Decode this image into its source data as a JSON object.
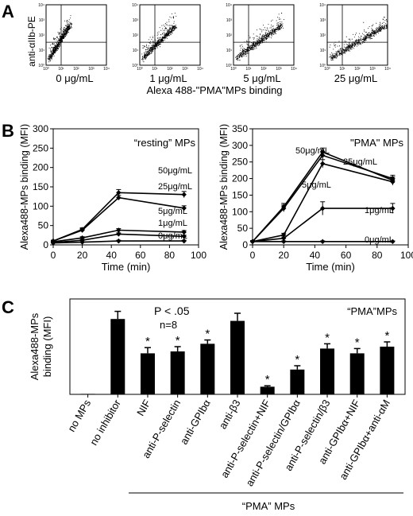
{
  "panels": {
    "A": {
      "letter": "A",
      "ylabel": "anti-αIIb-PE",
      "xlabel": "Alexa 488-\"PMA\"MPs binding",
      "tick_labels": [
        "10⁰",
        "10¹",
        "10²",
        "10³",
        "10⁴"
      ],
      "plots": [
        {
          "label": "0 μg/mL",
          "spread": 0.35
        },
        {
          "label": "1 μg/mL",
          "spread": 0.55
        },
        {
          "label": "5 μg/mL",
          "spread": 0.75
        },
        {
          "label": "25 μg/mL",
          "spread": 0.95
        }
      ]
    },
    "B": {
      "letter": "B"
    },
    "C": {
      "letter": "C"
    }
  },
  "chart_data": [
    {
      "type": "line",
      "title": "“resting” MPs",
      "xlabel": "Time (min)",
      "ylabel": "Alexa488-MPs binding (MFI)",
      "x": [
        0,
        20,
        45,
        90
      ],
      "xlim": [
        0,
        100
      ],
      "ylim": [
        0,
        300
      ],
      "xticks": [
        0,
        20,
        40,
        60,
        80,
        100
      ],
      "yticks": [
        0,
        50,
        100,
        150,
        200,
        250,
        300
      ],
      "series": [
        {
          "name": "50μg/mL",
          "values": [
            10,
            40,
            135,
            130
          ],
          "err": [
            2,
            4,
            8,
            8
          ]
        },
        {
          "name": "25μg/mL",
          "values": [
            10,
            38,
            122,
            95
          ],
          "err": [
            2,
            4,
            6,
            6
          ]
        },
        {
          "name": "5μg/mL",
          "values": [
            8,
            18,
            38,
            33
          ],
          "err": [
            2,
            3,
            4,
            4
          ]
        },
        {
          "name": "1μg/mL",
          "values": [
            6,
            12,
            28,
            22
          ],
          "err": [
            2,
            2,
            3,
            3
          ]
        },
        {
          "name": "0μg/mL",
          "values": [
            5,
            7,
            10,
            10
          ],
          "err": [
            1,
            1,
            2,
            2
          ]
        }
      ]
    },
    {
      "type": "line",
      "title": "\"PMA\" MPs",
      "xlabel": "Time (min)",
      "ylabel": "Alexa488-MPs binding (MFI)",
      "x": [
        0,
        20,
        45,
        90
      ],
      "xlim": [
        0,
        100
      ],
      "ylim": [
        0,
        350
      ],
      "xticks": [
        0,
        20,
        40,
        60,
        80,
        100
      ],
      "yticks": [
        0,
        50,
        100,
        150,
        200,
        250,
        300,
        350
      ],
      "series": [
        {
          "name": "50μg/mL",
          "values": [
            10,
            115,
            280,
            195
          ],
          "err": [
            3,
            10,
            12,
            10
          ]
        },
        {
          "name": "25μg/mL",
          "values": [
            10,
            110,
            270,
            200
          ],
          "err": [
            3,
            10,
            12,
            10
          ]
        },
        {
          "name": "5μg/mL",
          "values": [
            10,
            30,
            245,
            190
          ],
          "err": [
            3,
            5,
            12,
            10
          ]
        },
        {
          "name": "1μg/mL",
          "values": [
            10,
            20,
            110,
            110
          ],
          "err": [
            3,
            4,
            20,
            15
          ]
        },
        {
          "name": "0μg/mL",
          "values": [
            10,
            10,
            10,
            10
          ],
          "err": [
            2,
            2,
            2,
            2
          ]
        }
      ]
    },
    {
      "type": "bar",
      "title": "“PMA”MPs",
      "ylabel": "Alexa488-MPs binding (MFI)",
      "xlabel": "“PMA” MPs",
      "annotation_p": "P < .05",
      "annotation_n": "n=8",
      "ylim": [
        0,
        100
      ],
      "categories": [
        "no MPs",
        "no inhibitor",
        "NIF",
        "anti-P-selectin",
        "anti-GPIbα",
        "anti-β3",
        "anti-P-selectin+NIF",
        "anti-P-selectin/GPIbα",
        "anti-P-selectin/β3",
        "anti-GPIbα+NIF",
        "anti-GPIbα+anti-αM"
      ],
      "values": [
        0.5,
        79,
        43,
        45,
        53,
        77,
        8,
        26,
        48,
        43,
        50
      ],
      "err": [
        0,
        8,
        6,
        5,
        4,
        8,
        1,
        4,
        5,
        5,
        5
      ],
      "significant": [
        false,
        false,
        true,
        true,
        true,
        false,
        true,
        true,
        true,
        true,
        true
      ],
      "significance_marker": "*"
    }
  ]
}
